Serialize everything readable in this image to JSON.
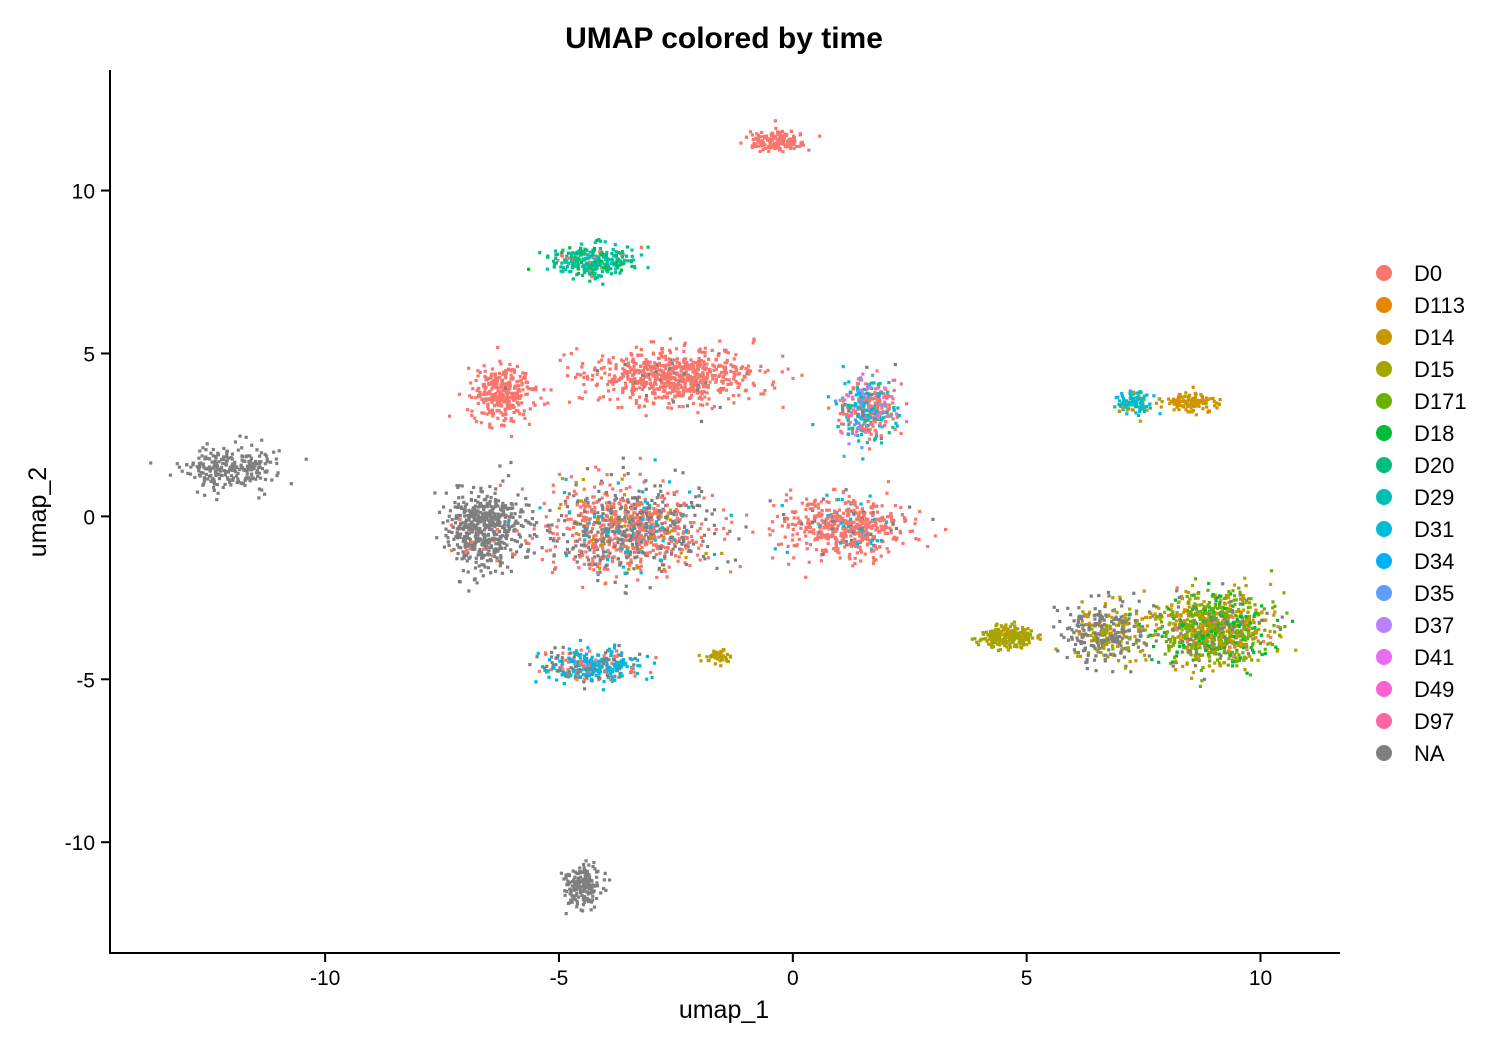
{
  "chart_data": {
    "type": "scatter",
    "title": "UMAP colored by time",
    "xlabel": "umap_1",
    "ylabel": "umap_2",
    "xlim": [
      -14.6,
      11.7
    ],
    "ylim": [
      -13.4,
      13.7
    ],
    "xticks": [
      -10,
      -5,
      0,
      5,
      10
    ],
    "xtick_labels": [
      "-10",
      "-5",
      "0",
      "5",
      "10"
    ],
    "yticks": [
      -10,
      -5,
      0,
      5,
      10
    ],
    "ytick_labels": [
      "-10",
      "-5",
      "0",
      "5",
      "10"
    ],
    "grid": false,
    "legend_position": "right",
    "legend": [
      {
        "label": "D0",
        "color": "#F8766D"
      },
      {
        "label": "D113",
        "color": "#E58700"
      },
      {
        "label": "D14",
        "color": "#C99800"
      },
      {
        "label": "D15",
        "color": "#A3A500"
      },
      {
        "label": "D171",
        "color": "#6BB100"
      },
      {
        "label": "D18",
        "color": "#00BA38"
      },
      {
        "label": "D20",
        "color": "#00BF7D"
      },
      {
        "label": "D29",
        "color": "#00C0AF"
      },
      {
        "label": "D31",
        "color": "#00BCD8"
      },
      {
        "label": "D34",
        "color": "#00B0F6"
      },
      {
        "label": "D35",
        "color": "#619CFF"
      },
      {
        "label": "D37",
        "color": "#B983FF"
      },
      {
        "label": "D41",
        "color": "#E76BF3"
      },
      {
        "label": "D49",
        "color": "#FD61D1"
      },
      {
        "label": "D97",
        "color": "#FF67A4"
      },
      {
        "label": "NA",
        "color": "#7F7F7F"
      }
    ],
    "clusters": [
      {
        "center": [
          -12.0,
          1.5
        ],
        "spread": [
          0.9,
          0.6
        ],
        "n": 260,
        "groups": {
          "NA": 1
        }
      },
      {
        "center": [
          -4.5,
          -11.3
        ],
        "spread": [
          0.35,
          0.6
        ],
        "n": 180,
        "groups": {
          "NA": 1
        }
      },
      {
        "center": [
          -0.3,
          11.5
        ],
        "spread": [
          0.55,
          0.3
        ],
        "n": 150,
        "groups": {
          "D0": 1
        }
      },
      {
        "center": [
          -4.3,
          7.8
        ],
        "spread": [
          0.75,
          0.45
        ],
        "n": 280,
        "groups": {
          "D20": 0.45,
          "D29": 0.4,
          "D18": 0.1,
          "D0": 0.05
        }
      },
      {
        "center": [
          -6.2,
          3.8
        ],
        "spread": [
          0.6,
          0.8
        ],
        "n": 320,
        "groups": {
          "D0": 1
        }
      },
      {
        "center": [
          -2.5,
          4.3
        ],
        "spread": [
          1.6,
          0.75
        ],
        "n": 700,
        "groups": {
          "D0": 0.95,
          "NA": 0.05
        }
      },
      {
        "center": [
          1.6,
          3.3
        ],
        "spread": [
          0.55,
          0.9
        ],
        "n": 380,
        "groups": {
          "D0": 0.4,
          "D29": 0.2,
          "D31": 0.12,
          "D35": 0.08,
          "D37": 0.06,
          "D41": 0.05,
          "NA": 0.09
        }
      },
      {
        "center": [
          -6.6,
          -0.4
        ],
        "spread": [
          0.75,
          1.0
        ],
        "n": 550,
        "groups": {
          "NA": 0.95,
          "D0": 0.05
        }
      },
      {
        "center": [
          -3.5,
          -0.4
        ],
        "spread": [
          1.6,
          1.2
        ],
        "n": 1000,
        "groups": {
          "D0": 0.45,
          "NA": 0.4,
          "D31": 0.08,
          "D14": 0.07
        }
      },
      {
        "center": [
          1.2,
          -0.3
        ],
        "spread": [
          1.2,
          0.8
        ],
        "n": 550,
        "groups": {
          "D0": 0.85,
          "D31": 0.08,
          "NA": 0.07
        }
      },
      {
        "center": [
          -4.3,
          -4.6
        ],
        "spread": [
          0.95,
          0.45
        ],
        "n": 330,
        "groups": {
          "D31": 0.45,
          "D34": 0.15,
          "NA": 0.25,
          "D0": 0.15
        }
      },
      {
        "center": [
          -1.6,
          -4.3
        ],
        "spread": [
          0.25,
          0.2
        ],
        "n": 50,
        "groups": {
          "D14": 0.6,
          "D15": 0.4
        }
      },
      {
        "center": [
          4.6,
          -3.7
        ],
        "spread": [
          0.55,
          0.3
        ],
        "n": 230,
        "groups": {
          "D15": 0.85,
          "D14": 0.15
        }
      },
      {
        "center": [
          6.7,
          -3.6
        ],
        "spread": [
          0.8,
          0.85
        ],
        "n": 350,
        "groups": {
          "NA": 0.6,
          "D14": 0.2,
          "D15": 0.2
        }
      },
      {
        "center": [
          9.0,
          -3.5
        ],
        "spread": [
          1.1,
          1.0
        ],
        "n": 950,
        "groups": {
          "D171": 0.35,
          "D14": 0.25,
          "D18": 0.15,
          "D15": 0.1,
          "NA": 0.1,
          "D0": 0.05
        }
      },
      {
        "center": [
          7.3,
          3.5
        ],
        "spread": [
          0.35,
          0.3
        ],
        "n": 110,
        "groups": {
          "D31": 0.5,
          "D29": 0.3,
          "D14": 0.2
        }
      },
      {
        "center": [
          8.5,
          3.5
        ],
        "spread": [
          0.5,
          0.25
        ],
        "n": 120,
        "groups": {
          "D14": 0.8,
          "D113": 0.2
        }
      }
    ]
  }
}
